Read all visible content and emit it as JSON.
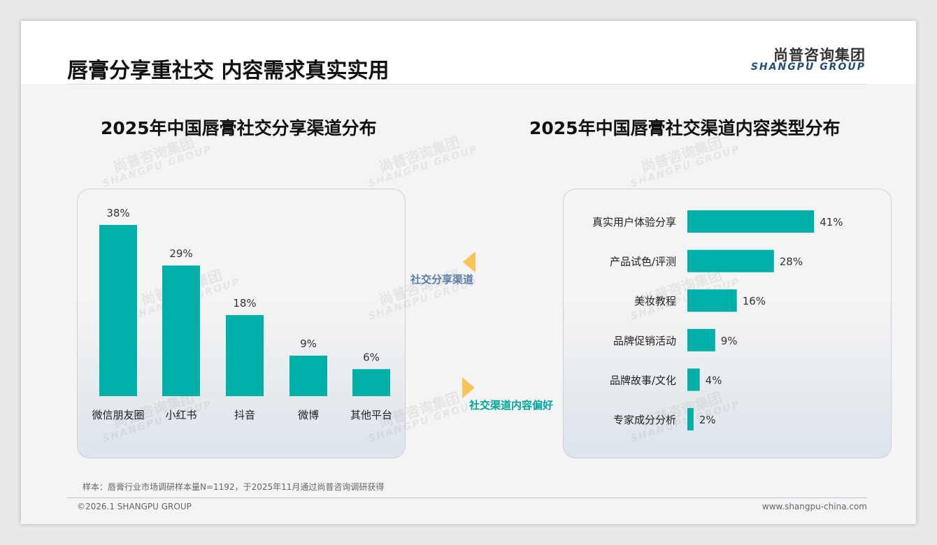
{
  "header": {
    "title": "唇膏分享重社交 内容需求真实实用",
    "logo_cn": "尚普咨询集团",
    "logo_en": "SHANGPU GROUP"
  },
  "watermark": {
    "cn": "尚普咨询集团",
    "en": "SHANGPU GROUP"
  },
  "connectors": {
    "top": "社交分享渠道",
    "bottom": "社交渠道内容偏好"
  },
  "footer": {
    "note": "样本：唇膏行业市场调研样本量N=1192，于2025年11月通过尚普咨询调研获得",
    "copyright": "©2026.1 SHANGPU GROUP",
    "url": "www.shangpu-china.com"
  },
  "colors": {
    "bar": "#00b0a8",
    "accent": "#f9c35a",
    "label_blue": "#5b7fa6",
    "label_teal": "#00a59d"
  },
  "chart_data": [
    {
      "type": "bar",
      "title": "2025年中国唇膏社交分享渠道分布",
      "categories": [
        "微信朋友圈",
        "小红书",
        "抖音",
        "微博",
        "其他平台"
      ],
      "values": [
        38,
        29,
        18,
        9,
        6
      ],
      "labels": [
        "38%",
        "29%",
        "18%",
        "9%",
        "6%"
      ],
      "unit": "%"
    },
    {
      "type": "bar",
      "orientation": "horizontal",
      "title": "2025年中国唇膏社交渠道内容类型分布",
      "categories": [
        "真实用户体验分享",
        "产品试色/评测",
        "美妆教程",
        "品牌促销活动",
        "品牌故事/文化",
        "专家成分分析"
      ],
      "values": [
        41,
        28,
        16,
        9,
        4,
        2
      ],
      "labels": [
        "41%",
        "28%",
        "16%",
        "9%",
        "4%",
        "2%"
      ],
      "unit": "%"
    }
  ]
}
